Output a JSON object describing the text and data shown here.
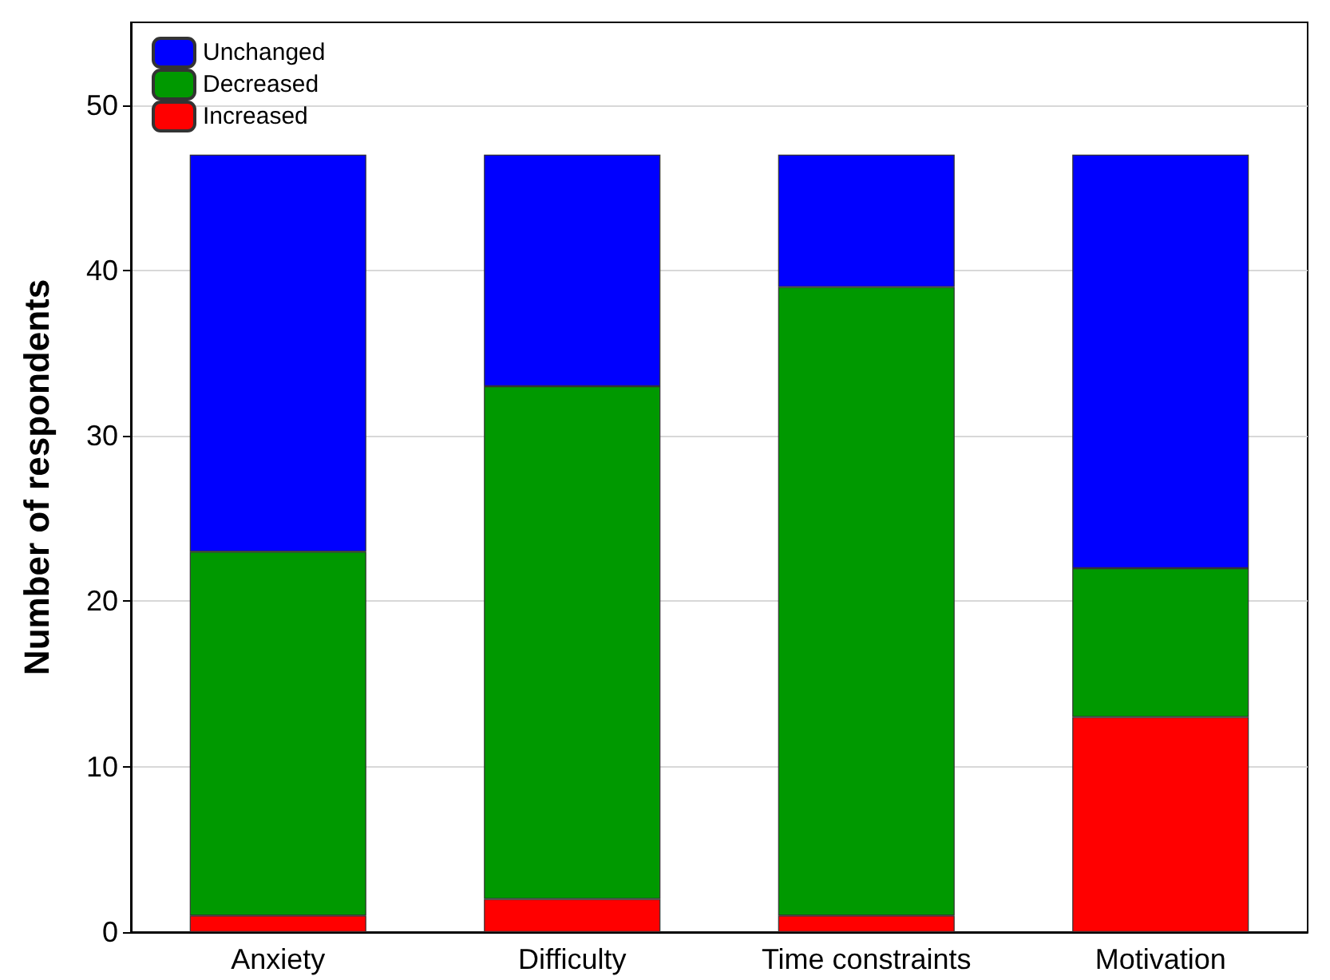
{
  "chart_data": {
    "type": "bar",
    "ylabel": "Number of respondents",
    "categories": [
      "Anxiety",
      "Difficulty",
      "Time constraints",
      "Motivation"
    ],
    "stacked": true,
    "series": [
      {
        "name": "Increased",
        "color": "#ff0000",
        "values": [
          1,
          2,
          1,
          13
        ]
      },
      {
        "name": "Decreased",
        "color": "#009900",
        "values": [
          22,
          31,
          38,
          9
        ]
      },
      {
        "name": "Unchanged",
        "color": "#0000ff",
        "values": [
          24,
          14,
          8,
          25
        ]
      }
    ],
    "ylim": [
      0,
      55
    ],
    "yticks": [
      0,
      10,
      20,
      30,
      40,
      50
    ],
    "grid": "y",
    "legend": "top left"
  }
}
